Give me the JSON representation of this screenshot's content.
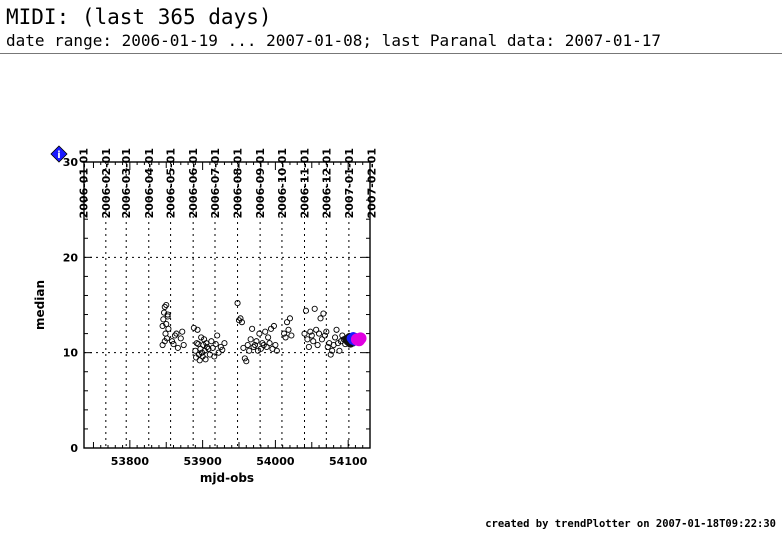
{
  "header": {
    "title": "MIDI: (last 365 days)",
    "subtitle": "date range: 2006-01-19 ... 2007-01-08; last Paranal data: 2007-01-17"
  },
  "footer": {
    "text": "created by trendPlotter on 2007-01-18T09:22:30"
  },
  "marker": {
    "label": "i",
    "color": "#1a1aff"
  },
  "chart_data": {
    "type": "scatter",
    "xlabel": "mjd-obs",
    "ylabel": "median",
    "xlim": [
      53737,
      54130
    ],
    "ylim": [
      0,
      30
    ],
    "x_ticks": [
      53800,
      53900,
      54000,
      54100
    ],
    "y_ticks": [
      0,
      10,
      20,
      30
    ],
    "y_grid": [
      10,
      20
    ],
    "grid": true,
    "date_ticks": [
      {
        "mjd": 53736,
        "label": "2006-01-01"
      },
      {
        "mjd": 53767,
        "label": "2006-02-01"
      },
      {
        "mjd": 53795,
        "label": "2006-03-01"
      },
      {
        "mjd": 53826,
        "label": "2006-04-01"
      },
      {
        "mjd": 53856,
        "label": "2006-05-01"
      },
      {
        "mjd": 53887,
        "label": "2006-06-01"
      },
      {
        "mjd": 53917,
        "label": "2006-07-01"
      },
      {
        "mjd": 53948,
        "label": "2006-08-01"
      },
      {
        "mjd": 53979,
        "label": "2006-09-01"
      },
      {
        "mjd": 54009,
        "label": "2006-10-01"
      },
      {
        "mjd": 54040,
        "label": "2006-11-01"
      },
      {
        "mjd": 54070,
        "label": "2006-12-01"
      },
      {
        "mjd": 54101,
        "label": "2007-01-01"
      },
      {
        "mjd": 54132,
        "label": "2007-02-01"
      }
    ],
    "series": [
      {
        "style": "open-circle",
        "color": "#000000",
        "x": [
          53845,
          53846,
          53847,
          53848,
          53849,
          53850,
          53851,
          53852,
          53853,
          53845,
          53848,
          53850,
          53852,
          53858,
          53860,
          53862,
          53864,
          53866,
          53870,
          53872,
          53874,
          53888,
          53890,
          53891,
          53892,
          53893,
          53894,
          53895,
          53896,
          53897,
          53898,
          53899,
          53900,
          53901,
          53902,
          53903,
          53904,
          53905,
          53906,
          53908,
          53910,
          53912,
          53914,
          53916,
          53918,
          53920,
          53922,
          53925,
          53927,
          53930,
          53948,
          53950,
          53952,
          53954,
          53956,
          53958,
          53960,
          53962,
          53964,
          53966,
          53968,
          53970,
          53972,
          53974,
          53976,
          53978,
          53980,
          53982,
          53984,
          53986,
          53988,
          53990,
          53992,
          53994,
          53996,
          53998,
          54000,
          54002,
          54012,
          54014,
          54016,
          54018,
          54020,
          54022,
          54040,
          54042,
          54044,
          54046,
          54048,
          54050,
          54052,
          54054,
          54056,
          54058,
          54060,
          54062,
          54064,
          54066,
          54068,
          54070,
          54072,
          54074,
          54076,
          54078,
          54080,
          54082,
          54084,
          54086,
          54088,
          54090,
          54092,
          54094,
          54096
        ],
        "y": [
          12.8,
          13.5,
          14.2,
          14.8,
          12.0,
          13.0,
          11.5,
          13.8,
          12.5,
          10.8,
          11.2,
          15.0,
          14.0,
          11.2,
          10.9,
          11.8,
          12.0,
          10.5,
          11.5,
          12.2,
          10.8,
          12.6,
          10.2,
          9.5,
          11.0,
          12.4,
          10.9,
          9.8,
          9.2,
          10.4,
          11.6,
          10.0,
          9.6,
          10.8,
          11.4,
          10.2,
          9.3,
          11.0,
          10.6,
          10.4,
          9.8,
          11.2,
          10.5,
          9.6,
          10.9,
          11.8,
          10.0,
          10.6,
          10.3,
          11.0,
          15.2,
          13.4,
          13.6,
          13.2,
          10.5,
          9.4,
          9.1,
          10.8,
          10.2,
          11.4,
          12.5,
          10.6,
          10.8,
          11.2,
          10.2,
          12.0,
          10.4,
          11.0,
          10.8,
          12.2,
          10.6,
          11.6,
          11.0,
          12.5,
          10.4,
          12.8,
          10.8,
          10.2,
          12.0,
          11.6,
          13.2,
          12.4,
          13.6,
          11.8,
          12.0,
          14.4,
          11.4,
          10.6,
          12.2,
          11.8,
          11.2,
          14.6,
          12.4,
          10.8,
          12.0,
          13.6,
          11.4,
          14.1,
          11.8,
          12.2,
          10.6,
          11.0,
          9.8,
          10.2,
          10.8,
          11.6,
          12.4,
          11.0,
          10.2,
          11.2,
          11.8,
          11.4,
          10.9
        ]
      },
      {
        "style": "filled-circle",
        "color": "#111111",
        "x": [
          54098,
          54100,
          54102,
          54103,
          54104,
          54105,
          54106,
          54108
        ],
        "y": [
          11.4,
          11.2,
          11.6,
          11.0,
          11.3,
          11.5,
          11.1,
          11.6
        ]
      },
      {
        "style": "filled-circle",
        "color": "#1a1aff",
        "x": [
          54104,
          54106,
          54107,
          54109,
          54110
        ],
        "y": [
          11.5,
          11.3,
          11.7,
          11.2,
          11.6
        ]
      },
      {
        "style": "filled-circle",
        "color": "#e000e0",
        "x": [
          54112,
          54115,
          54117
        ],
        "y": [
          11.4,
          11.3,
          11.5
        ]
      }
    ]
  }
}
